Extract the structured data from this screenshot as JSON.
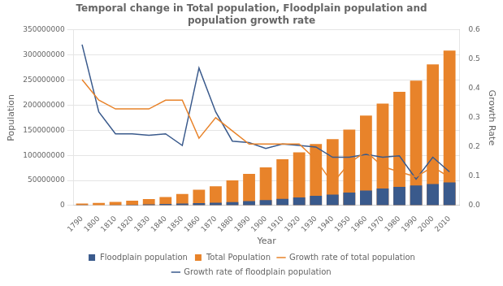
{
  "chart_data": {
    "type": "bar",
    "title": "Temporal change in Total population, Floodplain population and\npopulation growth rate",
    "xlabel": "Year",
    "ylabel": "Population",
    "y2label": "Growth Rate",
    "x": [
      1790,
      1800,
      1810,
      1820,
      1830,
      1840,
      1850,
      1860,
      1870,
      1880,
      1890,
      1900,
      1910,
      1920,
      1930,
      1940,
      1950,
      1960,
      1970,
      1980,
      1990,
      2000,
      2010
    ],
    "series": [
      {
        "name": "Floodplain population",
        "type": "bar",
        "color": "#3A5A8C",
        "values": [
          300000,
          700000,
          1100000,
          1600000,
          2200000,
          3000000,
          3800000,
          5000000,
          5500000,
          7000000,
          9000000,
          11000000,
          13500000,
          16000000,
          19500000,
          22000000,
          26000000,
          30000000,
          34000000,
          37000000,
          40000000,
          43000000,
          46000000
        ]
      },
      {
        "name": "Total Population",
        "type": "bar",
        "color": "#E8832A",
        "values": [
          3929000,
          5308000,
          7240000,
          9638000,
          12866000,
          17069000,
          23192000,
          31443000,
          38558000,
          50189000,
          62980000,
          76212000,
          92228000,
          106022000,
          122775000,
          132165000,
          151326000,
          179323000,
          203212000,
          226546000,
          248710000,
          281422000,
          308746000
        ]
      },
      {
        "name": "Growth rate of total population",
        "type": "line",
        "color": "#E8832A",
        "axis": "y2",
        "values": [
          0.43,
          0.36,
          0.33,
          0.33,
          0.33,
          0.36,
          0.36,
          0.23,
          0.3,
          0.255,
          0.21,
          0.21,
          0.21,
          0.21,
          0.157,
          0.076,
          0.145,
          0.185,
          0.133,
          0.115,
          0.098,
          0.132,
          0.097
        ]
      },
      {
        "name": "Growth rate of floodplain population",
        "type": "line",
        "color": "#3A5A8C",
        "axis": "y2",
        "values": [
          0.55,
          0.32,
          0.245,
          0.245,
          0.24,
          0.245,
          0.205,
          0.47,
          0.32,
          0.22,
          0.215,
          0.195,
          0.21,
          0.205,
          0.2,
          0.165,
          0.165,
          0.175,
          0.165,
          0.17,
          0.09,
          0.165,
          0.115
        ]
      }
    ],
    "xlim": [
      1785,
      2016
    ],
    "xticks": [
      1790,
      1800,
      1810,
      1820,
      1830,
      1840,
      1850,
      1860,
      1870,
      1880,
      1890,
      1900,
      1910,
      1920,
      1930,
      1940,
      1950,
      1960,
      1970,
      1980,
      1990,
      2000,
      2010
    ],
    "ylim": [
      0,
      350000000
    ],
    "yticks": [
      0,
      50000000,
      100000000,
      150000000,
      200000000,
      250000000,
      300000000,
      350000000
    ],
    "y2lim": [
      0,
      0.6
    ],
    "y2ticks": [
      {
        "value": 0,
        "label": "0.0"
      },
      0.1,
      0.2,
      0.3,
      0.4,
      0.5,
      0.6
    ],
    "grid": "y",
    "legend": "bottom"
  }
}
